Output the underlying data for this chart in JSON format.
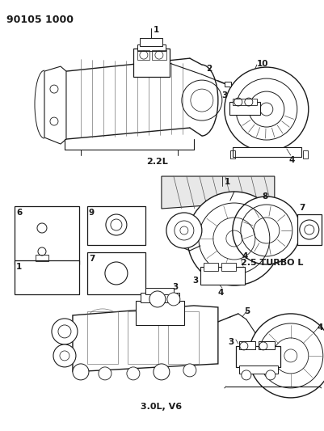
{
  "title": "90105 1000",
  "background_color": "#ffffff",
  "fig_width": 4.01,
  "fig_height": 5.33,
  "dpi": 100,
  "label_22L": "2.2L",
  "label_25T": "2.5 TURBO L",
  "label_30V": "3.0L, V6",
  "gray": "#888888",
  "dk": "#1a1a1a",
  "mid": "#555555",
  "lt": "#aaaaaa"
}
